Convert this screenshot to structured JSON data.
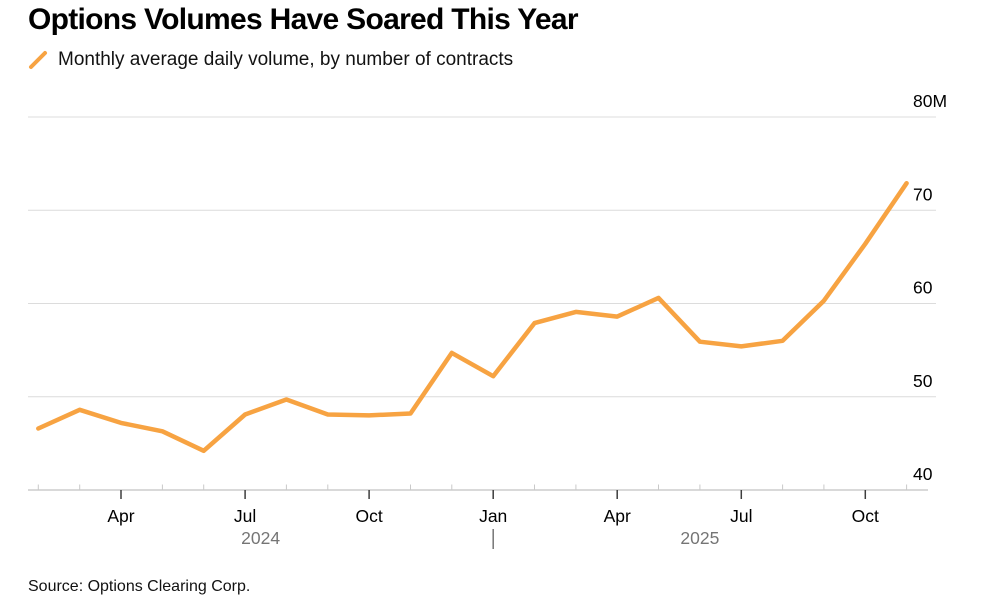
{
  "header": {
    "title": "Options Volumes Have Soared This Year",
    "legend_label": "Monthly average daily volume, by number of contracts"
  },
  "footer": {
    "source": "Source: Options Clearing Corp."
  },
  "colors": {
    "line_orange": "#F7A342",
    "grid": "#DCDCDC",
    "axis": "#C2C2C2",
    "minor_tick": "#C9C9C9",
    "major_tick": "#3D3D3D",
    "year_gray": "#757575",
    "text_black": "#000000"
  },
  "chart_data": {
    "type": "line",
    "title": "Options Volumes Have Soared This Year",
    "xlabel": "",
    "ylabel": "",
    "unit": "M contracts",
    "ylim": [
      40,
      80
    ],
    "yticks": [
      40,
      50,
      60,
      70,
      80
    ],
    "ytick_labels": [
      "40",
      "50",
      "60",
      "70",
      "80M"
    ],
    "x_major_tick_months": [
      "Jan",
      "Apr",
      "Jul",
      "Oct"
    ],
    "year_labels": [
      "2024",
      "2025"
    ],
    "grid": "horizontal-only",
    "legend_position": "top-left",
    "series": [
      {
        "name": "Monthly average daily volume, by number of contracts",
        "x": [
          "2024-02",
          "2024-03",
          "2024-04",
          "2024-05",
          "2024-06",
          "2024-07",
          "2024-08",
          "2024-09",
          "2024-10",
          "2024-11",
          "2024-12",
          "2025-01",
          "2025-02",
          "2025-03",
          "2025-04",
          "2025-05",
          "2025-06",
          "2025-07",
          "2025-08",
          "2025-09",
          "2025-10",
          "2025-11"
        ],
        "values": [
          46.6,
          48.6,
          47.2,
          46.3,
          44.2,
          48.1,
          49.7,
          48.1,
          48.0,
          48.2,
          54.7,
          52.2,
          57.9,
          59.1,
          58.6,
          60.6,
          55.9,
          55.4,
          56.0,
          60.3,
          66.4,
          72.9
        ]
      }
    ]
  }
}
